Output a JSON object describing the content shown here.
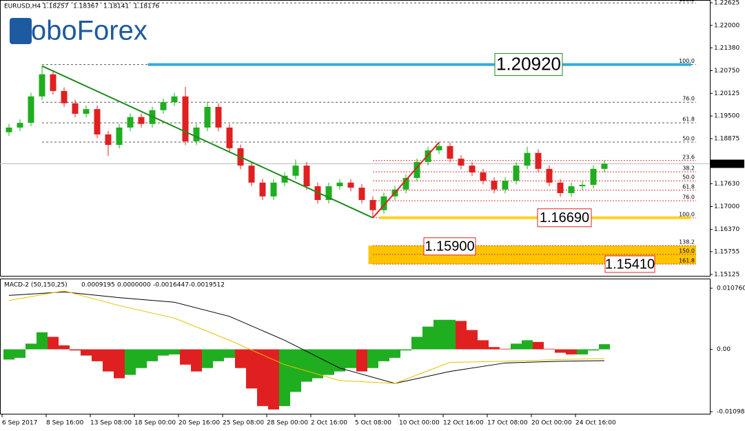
{
  "chart_data": {
    "type": "candlestick",
    "logo": "RoboForex",
    "symbol": "EURUSD,H4",
    "quote": [
      "1.18257",
      "1.18367",
      "1.18141",
      "1.18176"
    ],
    "up_color": "#1fae1f",
    "down_color": "#e02020",
    "open": [
      1.1905,
      1.1918,
      1.1931,
      1.2004,
      1.2065,
      1.2019,
      1.1985,
      1.1956,
      1.1969,
      1.1899,
      1.187,
      1.1918,
      1.1947,
      1.1928,
      1.1966,
      1.1988,
      1.2004,
      1.188,
      1.1918,
      1.1975,
      1.1918,
      1.1861,
      1.1813,
      1.1766,
      1.1728,
      1.1766,
      1.1785,
      1.1813,
      1.1756,
      1.1718,
      1.1756,
      1.1766,
      1.1752,
      1.1718,
      1.169,
      1.1728,
      1.1747,
      1.1779,
      1.1823,
      1.1855,
      1.1867,
      1.1832,
      1.1813,
      1.1794,
      1.1771,
      1.1747,
      1.1771,
      1.1813,
      1.1848,
      1.1804,
      1.1766,
      1.1737,
      1.1756,
      1.176,
      1.1804
    ],
    "high": [
      1.1928,
      1.1941,
      1.2014,
      1.2088,
      1.2075,
      1.2029,
      1.1995,
      1.1979,
      1.1979,
      1.1909,
      1.1928,
      1.1957,
      1.1957,
      1.1976,
      1.1998,
      1.2014,
      1.203,
      1.1928,
      1.199,
      1.1985,
      1.1928,
      1.1871,
      1.1823,
      1.1776,
      1.1776,
      1.1795,
      1.183,
      1.1823,
      1.1766,
      1.1766,
      1.1776,
      1.1776,
      1.1762,
      1.1728,
      1.1738,
      1.1757,
      1.1789,
      1.1833,
      1.1865,
      1.1877,
      1.1877,
      1.1842,
      1.1823,
      1.1804,
      1.1781,
      1.1781,
      1.1823,
      1.1865,
      1.1858,
      1.1814,
      1.1776,
      1.1766,
      1.177,
      1.1814,
      1.1828
    ],
    "low": [
      1.1895,
      1.1908,
      1.1921,
      1.1994,
      1.2009,
      1.1975,
      1.1946,
      1.1946,
      1.1889,
      1.184,
      1.186,
      1.1908,
      1.1918,
      1.1918,
      1.1956,
      1.1978,
      1.187,
      1.187,
      1.1908,
      1.1908,
      1.1851,
      1.1803,
      1.1756,
      1.1718,
      1.1718,
      1.1756,
      1.1775,
      1.1746,
      1.1708,
      1.1708,
      1.1746,
      1.1742,
      1.1708,
      1.1669,
      1.168,
      1.1718,
      1.1737,
      1.1769,
      1.1813,
      1.1845,
      1.1822,
      1.1803,
      1.1784,
      1.1761,
      1.1737,
      1.1737,
      1.1761,
      1.1803,
      1.1794,
      1.1756,
      1.1727,
      1.1727,
      1.1746,
      1.175,
      1.1794
    ],
    "close": [
      1.1918,
      1.1931,
      1.2004,
      1.2065,
      1.2019,
      1.1985,
      1.1956,
      1.1969,
      1.1899,
      1.187,
      1.1918,
      1.1947,
      1.1928,
      1.1966,
      1.1988,
      1.2004,
      1.188,
      1.1918,
      1.1975,
      1.1918,
      1.1861,
      1.1813,
      1.1766,
      1.1728,
      1.1766,
      1.1785,
      1.1813,
      1.1756,
      1.1718,
      1.1756,
      1.1766,
      1.1752,
      1.1718,
      1.169,
      1.1728,
      1.1747,
      1.1779,
      1.1823,
      1.1855,
      1.1867,
      1.1832,
      1.1813,
      1.1794,
      1.1771,
      1.1747,
      1.1771,
      1.1813,
      1.1848,
      1.1804,
      1.1766,
      1.1737,
      1.1756,
      1.176,
      1.1804,
      1.1818
    ],
    "ylim": [
      1.15125,
      1.22625
    ],
    "yticks": [
      {
        "value": 1.22625,
        "label": "1.22625"
      },
      {
        "value": 1.22,
        "label": "1.22000"
      },
      {
        "value": 1.2138,
        "label": "1.21380"
      },
      {
        "value": 1.2075,
        "label": "1.20750"
      },
      {
        "value": 1.20125,
        "label": "1.20125"
      },
      {
        "value": 1.195,
        "label": "1.19500"
      },
      {
        "value": 1.18875,
        "label": "1.18875"
      },
      {
        "value": 1.1763,
        "label": "1.17630"
      },
      {
        "value": 1.17,
        "label": "1.17000"
      },
      {
        "value": 1.1637,
        "label": "1.16370"
      },
      {
        "value": 1.15755,
        "label": "1.15755"
      },
      {
        "value": 1.15125,
        "label": "1.15125"
      }
    ],
    "x_labels": [
      "6 Sep 2017",
      "8 Sep 16:00",
      "13 Sep 08:00",
      "18 Sep 00:00",
      "20 Sep 16:00",
      "25 Sep 08:00",
      "28 Sep 00:00",
      "2 Oct 16:00",
      "5 Oct 08:00",
      "10 Oct 00:00",
      "12 Oct 16:00",
      "17 Oct 08:00",
      "20 Oct 00:00",
      "24 Oct 16:00"
    ],
    "fib_sets": [
      {
        "line_color": "#555555",
        "label_color": "#2e8b2e",
        "from_index": 3,
        "levels": [
          {
            "label": "138.2",
            "price": 1.2262
          },
          {
            "label": "100.0",
            "price": 1.2092
          },
          {
            "label": "76.0",
            "price": 1.1988
          },
          {
            "label": "61.8",
            "price": 1.1931
          },
          {
            "label": "50.0",
            "price": 1.1878
          }
        ]
      },
      {
        "line_color": "#e03030",
        "label_color": "#e03030",
        "from_index": 33,
        "levels": [
          {
            "label": "23.6",
            "price": 1.1827
          },
          {
            "label": "38.2",
            "price": 1.1796
          },
          {
            "label": "50.0",
            "price": 1.1771
          },
          {
            "label": "61.8",
            "price": 1.1745
          },
          {
            "label": "76.0",
            "price": 1.1716
          },
          {
            "label": "100.0",
            "price": 1.1669
          },
          {
            "label": "138.2",
            "price": 1.1592
          },
          {
            "label": "150.0",
            "price": 1.1568
          },
          {
            "label": "161.8",
            "price": 1.1541
          }
        ]
      }
    ],
    "trendlines": [
      {
        "from_index": 3,
        "from_price": 1.2088,
        "to_index": 33,
        "to_price": 1.1669,
        "color": "#1e8a1e"
      },
      {
        "from_index": 33,
        "from_price": 1.1669,
        "to_index": 39,
        "to_price": 1.1877,
        "color": "#e02020"
      }
    ],
    "zones": [
      {
        "price": 1.2092,
        "from_index": 12.6,
        "color": "#33aadd"
      },
      {
        "price": 1.1669,
        "from_index": 33.6,
        "color": "#ffd21a"
      }
    ],
    "box": {
      "top": 1.1592,
      "bottom": 1.1541,
      "from_index": 32.6,
      "color": "#ffc400"
    },
    "annotations": [
      {
        "label": "1.20920",
        "price": 1.2092,
        "color": "#1e8a1e"
      },
      {
        "label": "1.16690",
        "price": 1.1669,
        "color": "#e02020"
      },
      {
        "label": "1.15900",
        "price": 1.159,
        "color": "#e02020"
      },
      {
        "label": "1.15410",
        "price": 1.1541,
        "color": "#e02020"
      }
    ],
    "macd": {
      "title": "MACD-2 (50,150,25)",
      "readout": [
        "0.0009195",
        "0.0000000",
        "-0.0016447",
        "-0.0019512"
      ],
      "ylim": [
        -0.010988,
        0.01076
      ],
      "yticks": [
        {
          "value": 0.01076,
          "label": "0.010760"
        },
        {
          "value": 0,
          "label": "0.00"
        },
        {
          "value": -0.010988,
          "label": "-0.010988"
        }
      ],
      "histogram": [
        -0.0018,
        -0.0015,
        0.001,
        0.003,
        0.0022,
        0.0007,
        -0.0002,
        -0.0011,
        -0.0021,
        -0.0039,
        -0.0051,
        -0.0045,
        -0.0033,
        -0.0021,
        -0.0011,
        -0.0009,
        -0.0027,
        -0.0039,
        -0.0033,
        -0.0021,
        -0.0015,
        -0.0033,
        -0.0069,
        -0.01,
        -0.0106,
        -0.01,
        -0.0075,
        -0.0057,
        -0.0051,
        -0.0045,
        -0.0039,
        -0.0033,
        -0.0039,
        -0.0033,
        -0.0021,
        -0.0015,
        -0.0002,
        0.0022,
        0.004,
        0.0052,
        0.0052,
        0.005,
        0.0034,
        0.0016,
        0.0004,
        0.0001,
        0.001,
        0.0016,
        0.0013,
        0.0001,
        -0.0006,
        -0.0009,
        -0.0009,
        -0.0002,
        0.0009
      ],
      "lines": [
        {
          "color": "#000000",
          "x": [
            0,
            5,
            10,
            15,
            20,
            25,
            30,
            35,
            40,
            45,
            50,
            54
          ],
          "values": [
            0.0095,
            0.0101,
            0.0091,
            0.0083,
            0.0058,
            0.0016,
            -0.0033,
            -0.006,
            -0.0039,
            -0.0024,
            -0.0021,
            -0.002
          ]
        },
        {
          "color": "#e8c000",
          "x": [
            0,
            5,
            10,
            15,
            20,
            25,
            30,
            35,
            40,
            45,
            50,
            54
          ],
          "values": [
            0.0086,
            0.0103,
            0.0077,
            0.0055,
            0.0016,
            -0.0027,
            -0.0055,
            -0.006,
            -0.0023,
            -0.0021,
            -0.0018,
            -0.0016
          ]
        }
      ]
    }
  }
}
